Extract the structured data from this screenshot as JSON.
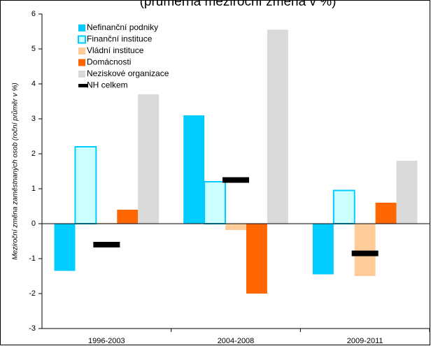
{
  "chart_data": {
    "type": "bar",
    "title": "(průměrná meziroční změna v %)",
    "y_label": "Meziroční změna zaměstnaných osob (roční průměr v %)",
    "categories": [
      "1996-2003",
      "2004-2008",
      "2009-2011"
    ],
    "series": [
      {
        "name": "Nefinanční podniky",
        "color": "#00ccff",
        "values": [
          -1.35,
          3.1,
          -1.45
        ]
      },
      {
        "name": "Finanční instituce",
        "color": "#ccffff",
        "edgecolor": "#00ccff",
        "values": [
          2.2,
          1.2,
          0.95
        ]
      },
      {
        "name": "Vládní instituce",
        "color": "#ffcc99",
        "values": [
          0.02,
          -0.18,
          -1.5
        ]
      },
      {
        "name": "Domácnosti",
        "color": "#ff6600",
        "values": [
          0.4,
          -2.0,
          0.6
        ]
      },
      {
        "name": "Neziskové organizace",
        "color": "#d9d9d9",
        "values": [
          3.7,
          5.55,
          1.8
        ]
      },
      {
        "name": "NH celkem",
        "color": "#000000",
        "marker": "dash",
        "values": [
          -0.6,
          1.25,
          -0.85
        ]
      }
    ],
    "ylim": [
      -3,
      6
    ],
    "yticks": [
      -3,
      -2,
      -1,
      0,
      1,
      2,
      3,
      4,
      5,
      6
    ],
    "legend": "upper left"
  }
}
